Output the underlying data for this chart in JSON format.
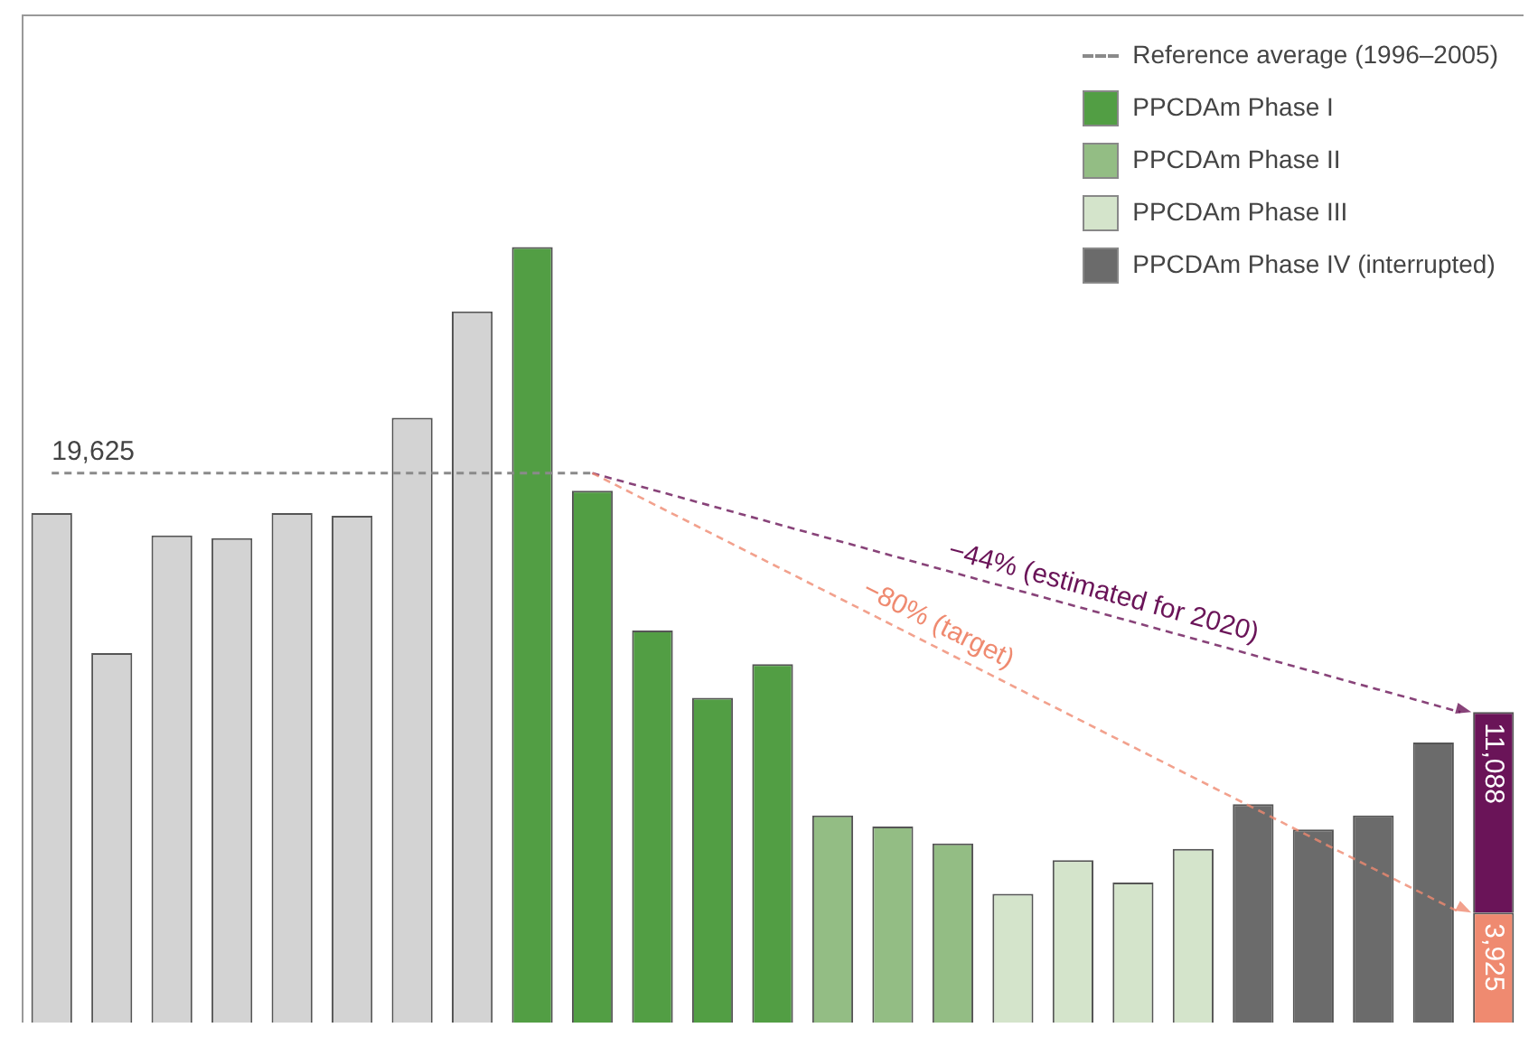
{
  "chart_data": {
    "type": "bar",
    "categories": [
      null,
      null,
      null,
      null,
      null,
      null,
      null,
      null,
      null,
      null,
      null,
      null,
      null,
      null,
      null,
      null,
      null,
      null,
      null,
      null,
      null,
      null,
      null,
      null,
      null
    ],
    "stacked": true,
    "series": [
      {
        "color": "#d3d3d3",
        "values": [
          18200,
          13200,
          17400,
          17300,
          18200,
          18100,
          21600,
          25400,
          null,
          null,
          null,
          null,
          null,
          null,
          null,
          null,
          null,
          null,
          null,
          null,
          null,
          null,
          null,
          null,
          null
        ]
      },
      {
        "name": "PPCDAm Phase I",
        "color": "#529e44",
        "values": [
          null,
          null,
          null,
          null,
          null,
          null,
          null,
          null,
          27700,
          19000,
          14000,
          11600,
          12800,
          null,
          null,
          null,
          null,
          null,
          null,
          null,
          null,
          null,
          null,
          null,
          null
        ]
      },
      {
        "name": "PPCDAm Phase II",
        "color": "#93bd84",
        "values": [
          null,
          null,
          null,
          null,
          null,
          null,
          null,
          null,
          null,
          null,
          null,
          null,
          null,
          7400,
          7000,
          6400,
          null,
          null,
          null,
          null,
          null,
          null,
          null,
          null,
          null
        ]
      },
      {
        "name": "PPCDAm Phase III",
        "color": "#d4e4cb",
        "values": [
          null,
          null,
          null,
          null,
          null,
          null,
          null,
          null,
          null,
          null,
          null,
          null,
          null,
          null,
          null,
          null,
          4600,
          5800,
          5000,
          6200,
          null,
          null,
          null,
          null,
          null
        ]
      },
      {
        "name": "PPCDAm Phase IV (interrupted)",
        "color": "#6b6b6b",
        "values": [
          null,
          null,
          null,
          null,
          null,
          null,
          null,
          null,
          null,
          null,
          null,
          null,
          null,
          null,
          null,
          null,
          null,
          null,
          null,
          null,
          7800,
          6900,
          7400,
          10000,
          null
        ]
      },
      {
        "color": "#ef8a70",
        "values": [
          null,
          null,
          null,
          null,
          null,
          null,
          null,
          null,
          null,
          null,
          null,
          null,
          null,
          null,
          null,
          null,
          null,
          null,
          null,
          null,
          null,
          null,
          null,
          null,
          3925
        ],
        "value_labels": [
          null,
          null,
          null,
          null,
          null,
          null,
          null,
          null,
          null,
          null,
          null,
          null,
          null,
          null,
          null,
          null,
          null,
          null,
          null,
          null,
          null,
          null,
          null,
          null,
          "3,925"
        ]
      },
      {
        "color": "#6a1458",
        "values": [
          null,
          null,
          null,
          null,
          null,
          null,
          null,
          null,
          null,
          null,
          null,
          null,
          null,
          null,
          null,
          null,
          null,
          null,
          null,
          null,
          null,
          null,
          null,
          null,
          7163
        ]
      }
    ],
    "totals": [
      null,
      null,
      null,
      null,
      null,
      null,
      null,
      null,
      null,
      null,
      null,
      null,
      null,
      null,
      null,
      null,
      null,
      null,
      null,
      null,
      null,
      null,
      null,
      null,
      "11,088"
    ],
    "ref_lines": [
      {
        "axis": "y",
        "value": 19625,
        "label": "Reference average (1996–2005)",
        "color": "#8a8a8a",
        "line_style": "dashed"
      }
    ],
    "annotations": [
      {
        "text": "19,625",
        "y": 19625
      },
      "−44% (estimated for 2020)",
      "−80% (target)"
    ],
    "tick_labels": false,
    "legend": "top right"
  }
}
